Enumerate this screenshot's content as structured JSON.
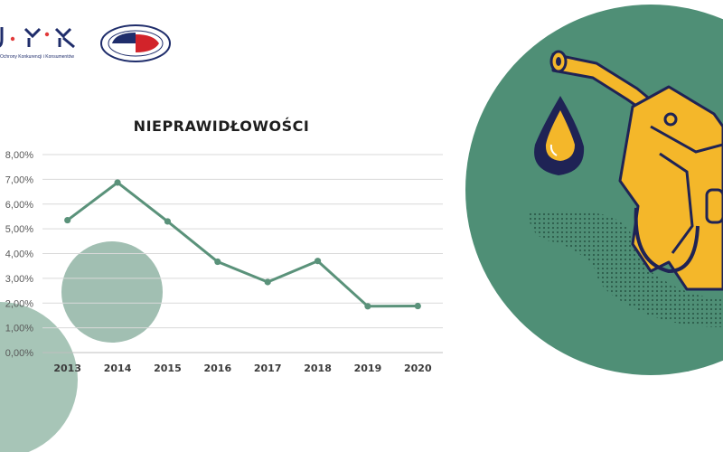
{
  "logos": {
    "uokik_caption": "Ochrony Konkurencji i Konsumentów",
    "inspection_badge": "INSPEKCJA HANDLOWA"
  },
  "chart_data": {
    "type": "line",
    "title": "NIEPRAWIDŁOWOŚCI",
    "xlabel": "",
    "ylabel": "",
    "categories": [
      "2013",
      "2014",
      "2015",
      "2016",
      "2017",
      "2018",
      "2019",
      "2020"
    ],
    "values": [
      5.35,
      6.87,
      5.3,
      3.67,
      2.85,
      3.7,
      1.87,
      1.88
    ],
    "ylim": [
      0,
      8
    ],
    "yticks": [
      "0,00%",
      "1,00%",
      "2,00%",
      "3,00%",
      "4,00%",
      "5,00%",
      "6,00%",
      "7,00%",
      "8,00%"
    ],
    "grid": true,
    "legend": "none",
    "line_color": "#5a927a"
  },
  "colors": {
    "green": "#4f8f76",
    "pale_green": "#9fbfb1",
    "navy": "#1f2355",
    "yellow": "#f4b72a"
  }
}
